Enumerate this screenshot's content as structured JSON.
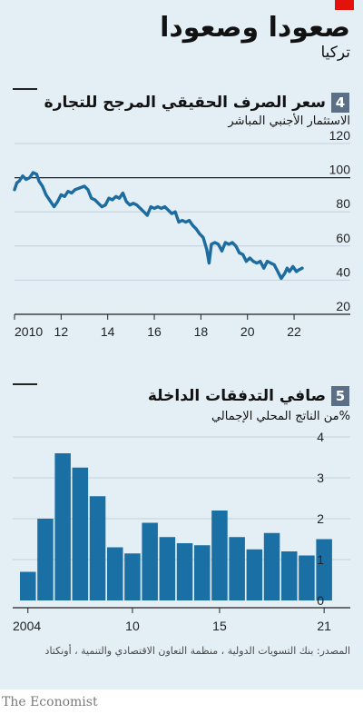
{
  "header": {
    "title": "صعودا وصعودا",
    "subtitle": "تركيا"
  },
  "charts": [
    {
      "number": "4",
      "title": "سعر الصرف الحقيقي المرجح للتجارة",
      "subtitle": "الاستثمار الأجنبي المباشر"
    },
    {
      "number": "5",
      "title": "صافي التدفقات الداخلة",
      "subtitle": "%من الناتج المحلي الإجمالي"
    }
  ],
  "source": "المصدر: بنك التسويات الدولية ، منظمة التعاون الاقتصادي والتنمية ، أونكتاد",
  "brand": "The Economist",
  "colors": {
    "series": "#1d6c9f",
    "bar": "#1a6fa5",
    "panel": "#e3eef5",
    "accent_red": "#e3120b"
  },
  "chart_data": [
    {
      "type": "line",
      "x_tick_labels": [
        "2010",
        "12",
        "14",
        "16",
        "18",
        "20",
        "22"
      ],
      "x_ticks": [
        2010,
        2012,
        2014,
        2016,
        2018,
        2020,
        2022
      ],
      "y_ticks": [
        20,
        40,
        60,
        80,
        100,
        120
      ],
      "ylim": [
        20,
        120
      ],
      "xlim": [
        2010,
        2023.4
      ],
      "reference_line": 100,
      "series": [
        {
          "x": [
            2010.0,
            2010.1,
            2010.2,
            2010.35,
            2010.5,
            2010.65,
            2010.8,
            2010.95,
            2011.05,
            2011.2,
            2011.35,
            2011.5,
            2011.7,
            2011.85,
            2012.0,
            2012.15,
            2012.3,
            2012.45,
            2012.6,
            2012.8,
            2013.0,
            2013.15,
            2013.3,
            2013.45,
            2013.6,
            2013.75,
            2013.9,
            2014.05,
            2014.2,
            2014.35,
            2014.5,
            2014.65,
            2014.8,
            2014.95,
            2015.1,
            2015.25,
            2015.4,
            2015.55,
            2015.7,
            2015.85,
            2016.0,
            2016.15,
            2016.3,
            2016.45,
            2016.6,
            2016.75,
            2016.9,
            2017.05,
            2017.2,
            2017.35,
            2017.5,
            2017.65,
            2017.8,
            2017.95,
            2018.1,
            2018.25,
            2018.35,
            2018.45,
            2018.6,
            2018.75,
            2018.9,
            2019.05,
            2019.2,
            2019.35,
            2019.5,
            2019.65,
            2019.8,
            2019.95,
            2020.1,
            2020.25,
            2020.4,
            2020.55,
            2020.7,
            2020.85,
            2021.0,
            2021.15,
            2021.3,
            2021.45,
            2021.6,
            2021.7,
            2021.8,
            2021.95,
            2022.1,
            2022.2,
            2022.35
          ],
          "y": [
            93,
            97,
            98,
            101,
            99,
            100,
            103,
            102,
            98,
            95,
            90,
            87,
            83,
            86,
            90,
            89,
            92,
            91,
            93,
            94,
            95,
            93,
            88,
            87,
            85,
            83,
            84,
            88,
            87,
            89,
            88,
            91,
            86,
            84,
            85,
            84,
            82,
            80,
            78,
            83,
            82,
            83,
            82,
            83,
            81,
            79,
            80,
            74,
            75,
            74,
            75,
            72,
            70,
            67,
            65,
            58,
            50,
            61,
            62,
            61,
            57,
            62,
            61,
            62,
            60,
            56,
            55,
            51,
            53,
            51,
            50,
            51,
            47,
            51,
            50,
            49,
            45,
            41,
            44,
            47,
            45,
            48,
            45,
            46,
            47
          ]
        }
      ]
    },
    {
      "type": "bar",
      "categories": [
        "2004",
        "2005",
        "2006",
        "2007",
        "2008",
        "2009",
        "2010",
        "2011",
        "2012",
        "2013",
        "2014",
        "2015",
        "2016",
        "2017",
        "2018",
        "2019",
        "2020",
        "2021"
      ],
      "values": [
        0.7,
        2.0,
        3.6,
        3.25,
        2.55,
        1.3,
        1.15,
        1.9,
        1.55,
        1.4,
        1.35,
        2.2,
        1.55,
        1.25,
        1.65,
        1.2,
        1.1,
        1.5
      ],
      "x_tick_labels": [
        "2004",
        "10",
        "15",
        "21"
      ],
      "x_tick_categories": [
        "2004",
        "2010",
        "2015",
        "2021"
      ],
      "y_ticks": [
        0,
        1,
        2,
        3,
        4
      ],
      "ylim": [
        0,
        4
      ]
    }
  ]
}
